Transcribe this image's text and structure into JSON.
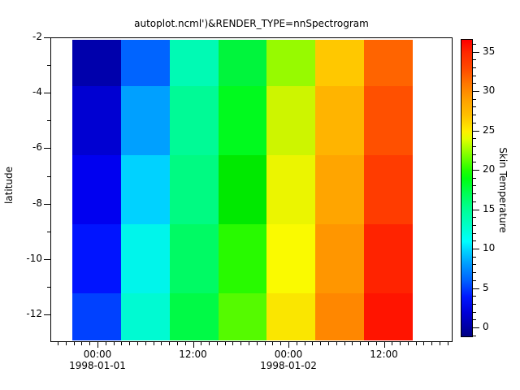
{
  "title": "autoplot.ncml')&RENDER_TYPE=nnSpectrogram",
  "y_axis": {
    "label": "latitude",
    "major_ticks": [
      {
        "label": "-2",
        "value": -2
      },
      {
        "label": "-4",
        "value": -4
      },
      {
        "label": "-6",
        "value": -6
      },
      {
        "label": "-8",
        "value": -8
      },
      {
        "label": "-10",
        "value": -10
      },
      {
        "label": "-12",
        "value": -12
      }
    ],
    "minor_tick_values": [
      -3,
      -5,
      -7,
      -9,
      -11
    ]
  },
  "x_axis": {
    "major_ticks": [
      {
        "time": "00:00",
        "date": "1998-01-01",
        "hour": 0
      },
      {
        "time": "12:00",
        "date": "",
        "hour": 12
      },
      {
        "time": "00:00",
        "date": "1998-01-02",
        "hour": 24
      },
      {
        "time": "12:00",
        "date": "",
        "hour": 36
      }
    ]
  },
  "colorbar": {
    "label": "Skin Temperature",
    "ticks": [
      {
        "label": "0",
        "value": 0
      },
      {
        "label": "5",
        "value": 5
      },
      {
        "label": "10",
        "value": 10
      },
      {
        "label": "15",
        "value": 15
      },
      {
        "label": "20",
        "value": 20
      },
      {
        "label": "25",
        "value": 25
      },
      {
        "label": "30",
        "value": 30
      },
      {
        "label": "35",
        "value": 35
      }
    ],
    "range": [
      -1,
      36.6
    ],
    "gradient_stops": [
      [
        0,
        "#000082"
      ],
      [
        2.7,
        "#0000a0"
      ],
      [
        8,
        "#0000d8"
      ],
      [
        13.4,
        "#0018ff"
      ],
      [
        18.7,
        "#0060ff"
      ],
      [
        24,
        "#0098ff"
      ],
      [
        29.3,
        "#00d8ff"
      ],
      [
        32,
        "#00ffff"
      ],
      [
        37.3,
        "#00ffc8"
      ],
      [
        42.6,
        "#00ff98"
      ],
      [
        47.9,
        "#00ff58"
      ],
      [
        53.2,
        "#00ff10"
      ],
      [
        55.9,
        "#20ff00"
      ],
      [
        61.2,
        "#80ff00"
      ],
      [
        66.5,
        "#e0ff00"
      ],
      [
        69.1,
        "#fff000"
      ],
      [
        74.5,
        "#ffc000"
      ],
      [
        79.8,
        "#ffa000"
      ],
      [
        85.1,
        "#ff7800"
      ],
      [
        90.4,
        "#ff4800"
      ],
      [
        95.7,
        "#ff2800"
      ],
      [
        100,
        "#ff0000"
      ]
    ]
  },
  "chart_data": {
    "type": "heatmap",
    "title": "autoplot.ncml')&RENDER_TYPE=nnSpectrogram",
    "xlabel": "",
    "ylabel": "latitude",
    "colorbar_label": "Skin Temperature",
    "x_categories": [
      "1998-01-01 00:00",
      "1998-01-01 06:00",
      "1998-01-01 12:00",
      "1998-01-01 18:00",
      "1998-01-02 00:00",
      "1998-01-02 06:00",
      "1998-01-02 12:00"
    ],
    "y_categories": [
      -2.5,
      -5,
      -7.5,
      -10,
      -12.5
    ],
    "x_range": [
      "1997-12-31 18:00",
      "1998-01-02 21:00"
    ],
    "y_range": [
      -13,
      -2
    ],
    "colorbar_range": [
      -1,
      36.6
    ],
    "colorbar_ticks": [
      0,
      5,
      10,
      15,
      20,
      25,
      30,
      35
    ],
    "values": [
      [
        0.5,
        6.5,
        13,
        17.5,
        22,
        26.5,
        32
      ],
      [
        1.5,
        8,
        14,
        19,
        23,
        27.5,
        33
      ],
      [
        3,
        9.5,
        15,
        20,
        24,
        28.5,
        34
      ],
      [
        4.5,
        11,
        16,
        21,
        24.5,
        29.5,
        35
      ],
      [
        5.5,
        12.5,
        17,
        21.5,
        25.5,
        30.5,
        36
      ]
    ],
    "cell_colors": [
      [
        "#0000ac",
        "#0064ff",
        "#00fab4",
        "#00f53c",
        "#97fa00",
        "#ffc800",
        "#ff6400"
      ],
      [
        "#0000d2",
        "#00a0ff",
        "#00fa96",
        "#00fa1e",
        "#cdf500",
        "#ffb400",
        "#ff5000"
      ],
      [
        "#0000f0",
        "#00d2ff",
        "#00fa82",
        "#00e900",
        "#ebf500",
        "#ffa500",
        "#ff3c00"
      ],
      [
        "#0014ff",
        "#00f5eb",
        "#00fa64",
        "#28fa00",
        "#fafa00",
        "#ff9600",
        "#ff2300"
      ],
      [
        "#0041ff",
        "#00fad2",
        "#00fa46",
        "#55fa00",
        "#fae600",
        "#ff8700",
        "#ff1400"
      ]
    ]
  }
}
